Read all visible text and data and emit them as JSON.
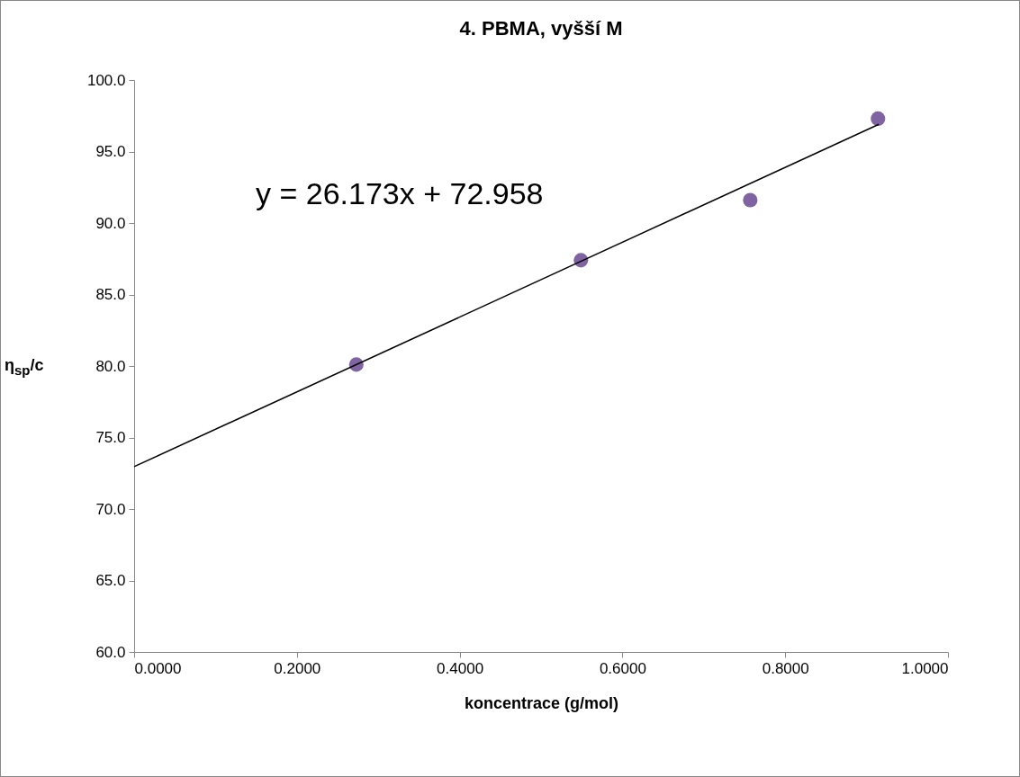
{
  "chart_data": {
    "type": "scatter",
    "title": "4.     PBMA, vyšší M",
    "xlabel": "koncentrace (g/mol)",
    "ylabel": "η$_{sp}$/c",
    "xlim": [
      0,
      1
    ],
    "xticks": [
      {
        "value": 0,
        "label": "0.0000"
      },
      {
        "value": 0.2,
        "label": "0.2000"
      },
      {
        "value": 0.4,
        "label": "0.4000"
      },
      {
        "value": 0.6,
        "label": "0.6000"
      },
      {
        "value": 0.8,
        "label": "0.8000"
      },
      {
        "value": 1,
        "label": "1.0000"
      }
    ],
    "ylim": [
      60,
      100
    ],
    "yticks": [
      {
        "value": 60,
        "label": "60.0"
      },
      {
        "value": 65,
        "label": "65.0"
      },
      {
        "value": 70,
        "label": "70.0"
      },
      {
        "value": 75,
        "label": "75.0"
      },
      {
        "value": 80,
        "label": "80.0"
      },
      {
        "value": 85,
        "label": "85.0"
      },
      {
        "value": 90,
        "label": "90.0"
      },
      {
        "value": 95,
        "label": "95.0"
      },
      {
        "value": 100,
        "label": "100.0"
      }
    ],
    "x": [
      0.273,
      0.549,
      0.757,
      0.914
    ],
    "series": [
      {
        "color": "#8064a2",
        "marker": "circle",
        "values": [
          80.1,
          87.4,
          91.6,
          97.3
        ]
      },
      {
        "type": "line",
        "color": "#000000",
        "x": [
          0,
          0.915
        ],
        "values": [
          72.96,
          96.9
        ]
      }
    ],
    "grid": false,
    "annotations": [
      "y = 26.173x + 72.958"
    ]
  }
}
